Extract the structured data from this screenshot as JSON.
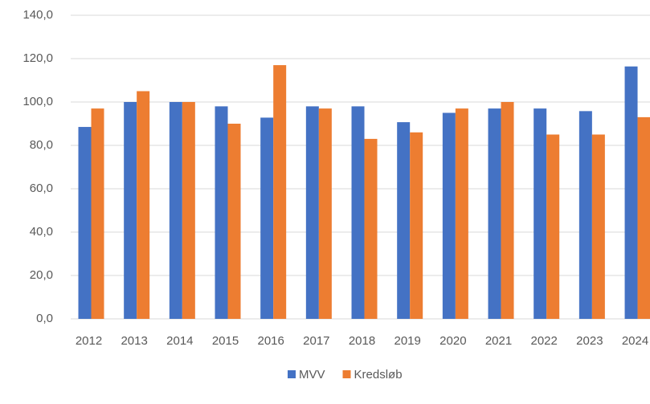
{
  "chart_data": {
    "type": "bar",
    "categories": [
      "2012",
      "2013",
      "2014",
      "2015",
      "2016",
      "2017",
      "2018",
      "2019",
      "2020",
      "2021",
      "2022",
      "2023",
      "2024"
    ],
    "series": [
      {
        "name": "MVV",
        "color": "#4472c4",
        "values": [
          88.5,
          100,
          100,
          98,
          92.8,
          98,
          98,
          90.7,
          95,
          97,
          97,
          95.8,
          116.4
        ]
      },
      {
        "name": "Kredsløb",
        "color": "#ed7d31",
        "values": [
          97,
          105,
          100,
          90,
          117,
          97,
          83,
          86,
          97,
          100,
          85,
          85,
          93
        ]
      }
    ],
    "ylim": [
      0,
      140
    ],
    "yticks": [
      {
        "value": 0,
        "label": "0,0"
      },
      {
        "value": 20,
        "label": "20,0"
      },
      {
        "value": 40,
        "label": "40,0"
      },
      {
        "value": 60,
        "label": "60,0"
      },
      {
        "value": 80,
        "label": "80,0"
      },
      {
        "value": 100,
        "label": "100,0"
      },
      {
        "value": 120,
        "label": "120,0"
      },
      {
        "value": 140,
        "label": "140,0"
      }
    ],
    "grid": true,
    "legend": "bottom"
  }
}
